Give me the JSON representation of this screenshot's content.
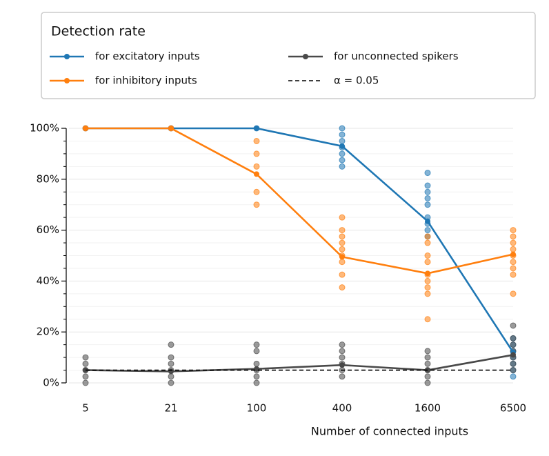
{
  "chart_data": {
    "type": "line",
    "legend_title": "Detection rate",
    "xlabel": "Number of connected inputs",
    "categories": [
      "5",
      "21",
      "100",
      "400",
      "1600",
      "6500"
    ],
    "ylim": [
      0,
      100
    ],
    "yticks": [
      {
        "value": 0,
        "label": "0%"
      },
      {
        "value": 20,
        "label": "20%"
      },
      {
        "value": 40,
        "label": "40%"
      },
      {
        "value": 60,
        "label": "60%"
      },
      {
        "value": 80,
        "label": "80%"
      },
      {
        "value": 100,
        "label": "100%"
      }
    ],
    "minor_yticks": [
      5,
      10,
      15,
      25,
      30,
      35,
      45,
      50,
      55,
      65,
      70,
      75,
      85,
      90,
      95
    ],
    "grid": true,
    "legend": "top",
    "series": [
      {
        "name": "for excitatory inputs",
        "color": "#1f77b4",
        "values": [
          100,
          100,
          100,
          93,
          63.5,
          12
        ],
        "points": [
          [
            100
          ],
          [
            100
          ],
          [
            100
          ],
          [
            100,
            97.5,
            95,
            92.5,
            90,
            87.5,
            85
          ],
          [
            82.5,
            77.5,
            75,
            72.5,
            70,
            65,
            62.5,
            60,
            57.5
          ],
          [
            17.5,
            15,
            12.5,
            10,
            7.5,
            5,
            2.5
          ]
        ]
      },
      {
        "name": "for inhibitory inputs",
        "color": "#ff7f0e",
        "values": [
          100,
          100,
          82,
          49.5,
          43,
          50.5
        ],
        "points": [
          [
            100
          ],
          [
            100
          ],
          [
            95,
            90,
            85,
            75,
            70
          ],
          [
            65,
            60,
            57.5,
            55,
            52.5,
            50,
            47.5,
            42.5,
            37.5
          ],
          [
            57.5,
            55,
            50,
            47.5,
            42.5,
            40,
            37.5,
            35,
            25
          ],
          [
            60,
            57.5,
            55,
            52.5,
            50,
            47.5,
            45,
            42.5,
            35
          ]
        ]
      },
      {
        "name": "for unconnected spikers",
        "color": "#494949",
        "values": [
          5,
          4.5,
          5.5,
          7,
          5,
          11
        ],
        "points": [
          [
            10,
            7.5,
            5,
            2.5,
            0
          ],
          [
            15,
            10,
            7.5,
            5,
            2.5,
            0
          ],
          [
            15,
            12.5,
            7.5,
            5,
            2.5,
            0
          ],
          [
            15,
            12.5,
            10,
            7.5,
            5,
            2.5
          ],
          [
            12.5,
            10,
            7.5,
            5,
            2.5,
            0
          ],
          [
            22.5,
            17.5,
            15,
            12.5,
            10,
            7.5,
            5
          ]
        ]
      },
      {
        "name": "α = 0.05",
        "color": "#000000",
        "dashed": true,
        "values": [
          5,
          5,
          5,
          5,
          5,
          5
        ]
      }
    ]
  }
}
